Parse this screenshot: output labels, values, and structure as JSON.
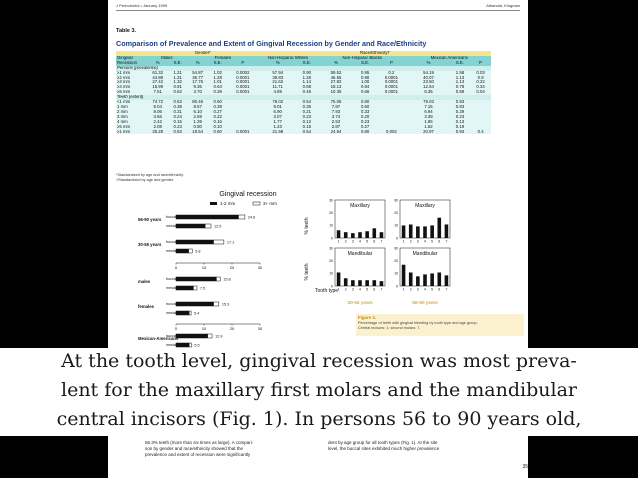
{
  "header": {
    "left": "J Periodontol • January 1999",
    "right": "Albandar, Kingman"
  },
  "table": {
    "label": "Table 3.",
    "title": "Comparison of Prevalence and Extent of Gingival Recession by Gender and Race/Ethnicity",
    "group_gender": "Gender*",
    "group_race": "Race/Ethnicity†",
    "gingival_label": "Gingival",
    "recession_label": "Recession",
    "subgroups": [
      "Males",
      "Females",
      "Non-Hispanic Whites",
      "Non-Hispanic Blacks",
      "Mexican Americans"
    ],
    "stats": [
      "%",
      "S.E.",
      "%",
      "S.E.",
      "P",
      "%",
      "S.E.",
      "%",
      "S.E.",
      "P",
      "%",
      "S.E.",
      "P"
    ],
    "section_persons": "Persons (prevalence)",
    "section_teeth": "Teeth (extent)",
    "persons_rows": [
      [
        "≥1 mm",
        "61.32",
        "1.21",
        "54.87",
        "1.02",
        "0.0002",
        "57.94",
        "0.90",
        "59.52",
        "0.95",
        "0.2",
        "54.19",
        "1.58",
        "0.03"
      ],
      [
        "≥2 mm",
        "44.88",
        "1.31",
        "36.77",
        "1.28",
        "0.0001",
        "39.83",
        "1.26",
        "46.55",
        "0.98",
        "0.0001",
        "40.07",
        "1.13",
        "0.9"
      ],
      [
        "≥3 mm",
        "27.42",
        "1.32",
        "17.76",
        "1.01",
        "0.0001",
        "21.62",
        "1.14",
        "27.82",
        "1.00",
        "0.0001",
        "23.50",
        "1.13",
        "0.22"
      ],
      [
        "≥4 mm",
        "15.99",
        "0.91",
        "9.36",
        "0.64",
        "0.0001",
        "11.71",
        "0.68",
        "18.13",
        "0.94",
        "0.0001",
        "12.64",
        "0.78",
        "0.34"
      ],
      [
        "≥5 mm",
        "7.51",
        "0.62",
        "3.70",
        "0.39",
        "0.0001",
        "4.89",
        "0.46",
        "10.35",
        "0.66",
        "0.0001",
        "6.35",
        "0.59",
        "0.04"
      ]
    ],
    "teeth_rows": [
      [
        "<1 mm",
        "74.72",
        "0.63",
        "80.46",
        "0.60",
        "",
        "78.02",
        "0.54",
        "75.06",
        "0.80",
        "",
        "79.03",
        "0.93",
        ""
      ],
      [
        "1 mm",
        "9.04",
        "0.38",
        "8.57",
        "0.38",
        "",
        "9.01",
        "0.36",
        "7.87",
        "0.60",
        "",
        "7.15",
        "0.83",
        ""
      ],
      [
        "2 mm",
        "8.06",
        "0.31",
        "6.10",
        "0.27",
        "",
        "6.90",
        "0.21",
        "7.93",
        "0.33",
        "",
        "6.94",
        "0.29",
        ""
      ],
      [
        "3 mm",
        "3.66",
        "0.24",
        "2.69",
        "0.22",
        "",
        "3.07",
        "0.23",
        "3.74",
        "0.20",
        "",
        "3.39",
        "0.23",
        ""
      ],
      [
        "4 mm",
        "2.42",
        "0.16",
        "1.39",
        "0.16",
        "",
        "1.77",
        "0.12",
        "2.53",
        "0.23",
        "",
        "1.86",
        "0.13",
        ""
      ],
      [
        "≥5 mm",
        "2.08",
        "0.23",
        "0.80",
        "0.10",
        "",
        "1.23",
        "0.15",
        "2.87",
        "0.27",
        "",
        "1.62",
        "0.19",
        ""
      ]
    ],
    "summary_row": [
      "≥1 mm",
      "25.28",
      "0.63",
      "19.54",
      "0.60",
      "0.0001",
      "21.98",
      "0.54",
      "24.94",
      "0.80",
      "0.002",
      "20.97",
      "0.93",
      "0.4"
    ],
    "footnote_1": "*Standardized by age and race/ethnicity.",
    "footnote_2": "†Standardized by age and gender."
  },
  "chart_data": [
    {
      "type": "bar",
      "title": "Gingival recession",
      "legend": [
        "1-2 mm",
        "3+ mm"
      ],
      "groups": [
        {
          "label": "56-90 years",
          "rows": [
            {
              "site": "buccal",
              "values": [
                22.4,
                24.6
              ],
              "label": "24.6"
            },
            {
              "site": "mesial",
              "values": [
                10.5,
                12.5
              ],
              "label": "12.5"
            }
          ]
        },
        {
          "label": "30-55 years",
          "rows": [
            {
              "site": "buccal",
              "values": [
                13.5,
                17.1
              ],
              "label": "17.1"
            },
            {
              "site": "mesial",
              "values": [
                4.6,
                5.8
              ],
              "label": "5.8"
            }
          ]
        },
        {
          "label": "males",
          "rows": [
            {
              "site": "buccal",
              "values": [
                14.5,
                15.8
              ],
              "label": "15.8"
            },
            {
              "site": "mesial",
              "values": [
                6.3,
                7.5
              ],
              "label": "7.5"
            }
          ]
        },
        {
          "label": "females",
          "rows": [
            {
              "site": "buccal",
              "values": [
                13.5,
                15.3
              ],
              "label": "15.3"
            },
            {
              "site": "mesial",
              "values": [
                4.8,
                5.4
              ],
              "label": "5.4"
            }
          ]
        },
        {
          "label": "Mexican-Americans",
          "rows": [
            {
              "site": "buccal",
              "values": [
                11.4,
                12.9
              ],
              "label": "12.9"
            },
            {
              "site": "mesial",
              "values": [
                4.8,
                5.5
              ],
              "label": "5.5"
            }
          ]
        }
      ],
      "xticks": [
        "0",
        "10",
        "20",
        "30"
      ],
      "xlim": [
        0,
        30
      ]
    },
    {
      "type": "bar",
      "ylabel": "% teeth",
      "xlabel": "Tooth type",
      "ylim": [
        0,
        30
      ],
      "yticks": [
        "0",
        "10",
        "20",
        "30"
      ],
      "categories": [
        "1",
        "2",
        "3",
        "4",
        "5",
        "6",
        "7"
      ],
      "panels": [
        {
          "name": "Maxillary",
          "age": "30-55 years",
          "values": [
            8,
            6,
            5,
            6,
            7,
            10,
            6
          ]
        },
        {
          "name": "Maxillary",
          "age": "56-90 years",
          "values": [
            13,
            14,
            12,
            12,
            13,
            21,
            14
          ]
        },
        {
          "name": "Mandibular",
          "age": "30-55 years",
          "values": [
            14,
            8,
            6,
            6,
            6,
            6,
            5
          ]
        },
        {
          "name": "Mandibular",
          "age": "56-90 years",
          "values": [
            22,
            14,
            10,
            12,
            13,
            14,
            11
          ]
        }
      ],
      "age_labels": [
        "30-55 years",
        "56-90 years"
      ]
    }
  ],
  "figure": {
    "label": "Figure 3.",
    "caption_1": "Percentage of teeth with gingival bleeding by tooth type and age group.",
    "caption_2": "Central incisors: 1; second molars: 7."
  },
  "overlay": {
    "line_1": "At the tooth level, gingival recession was most preva-",
    "line_2": "lent for the maxillary first molars and the mandibular",
    "line_3": "central incisors (Fig. 1). In persons 56 to 90 years old,"
  },
  "bottom": {
    "left_1": "56.3% teeth (more than six times as large). A compari-",
    "left_2": "son by gender and race/ethnicity showed that the",
    "left_3": "prevalence and extent of recession were significantly",
    "right_1": "dent by age group for all tooth types (Fig. 1). At the site",
    "right_2": "level, the buccal sites exhibited much higher prevalence",
    "page_number": "35"
  },
  "colors": {
    "accent": "#1d3f87",
    "header_yellow": "#f6e58d",
    "header_teal": "#84d3d3",
    "bar_dark": "#111111",
    "fig_caption": "#e8b93a"
  }
}
